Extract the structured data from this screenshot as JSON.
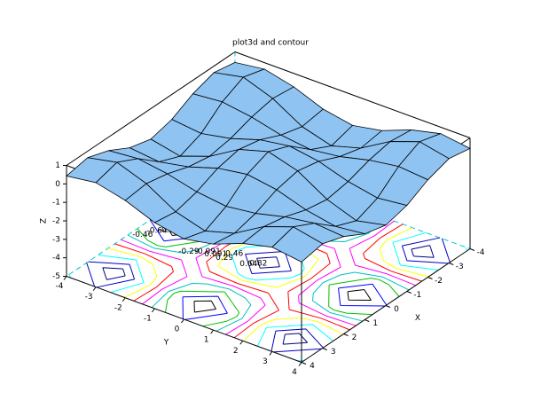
{
  "chart_data": {
    "type": "surface3d",
    "title": "plot3d and contour",
    "xlabel": "X",
    "ylabel": "Y",
    "zlabel": "Z",
    "x": [
      -4,
      -3,
      -2,
      -1,
      0,
      1,
      2,
      3,
      4
    ],
    "y": [
      -4,
      -3,
      -2,
      -1,
      0,
      1,
      2,
      3,
      4
    ],
    "z": [
      [
        0.43,
        0.65,
        0.27,
        -0.35,
        -0.65,
        -0.35,
        0.27,
        0.65,
        0.43
      ],
      [
        0.65,
        0.98,
        0.41,
        -0.53,
        -0.99,
        -0.53,
        0.41,
        0.98,
        0.65
      ],
      [
        0.27,
        0.41,
        0.17,
        -0.22,
        -0.42,
        -0.22,
        0.17,
        0.41,
        0.27
      ],
      [
        -0.35,
        -0.53,
        -0.22,
        0.29,
        0.54,
        0.29,
        -0.22,
        -0.53,
        -0.35
      ],
      [
        -0.65,
        -0.99,
        -0.42,
        0.54,
        1,
        0.54,
        -0.42,
        -0.99,
        -0.65
      ],
      [
        -0.35,
        -0.53,
        -0.22,
        0.29,
        0.54,
        0.29,
        -0.22,
        -0.53,
        -0.35
      ],
      [
        0.27,
        0.41,
        0.17,
        -0.22,
        -0.42,
        -0.22,
        0.17,
        0.41,
        0.27
      ],
      [
        0.65,
        0.98,
        0.41,
        -0.53,
        -0.99,
        -0.53,
        0.41,
        0.98,
        0.65
      ],
      [
        0.43,
        0.65,
        0.27,
        -0.35,
        -0.65,
        -0.35,
        0.27,
        0.65,
        0.43
      ]
    ],
    "surface_color": "#8ec3f2",
    "contour_levels": [
      -0.82,
      -0.64,
      -0.46,
      -0.29,
      -0.091,
      0.091,
      0.29,
      0.46,
      0.64,
      0.82
    ],
    "contour_colors": [
      "#000000",
      "#0000ff",
      "#00c000",
      "#00c0c0",
      "#ff00ff",
      "#ff0000",
      "#ffff00",
      "#00ffff",
      "#0000c0",
      "#000080"
    ],
    "xlim": [
      -4,
      4
    ],
    "ylim": [
      -4,
      4
    ],
    "zlim": [
      -5,
      1
    ],
    "xticks": [
      -4,
      -3,
      -2,
      -1,
      0,
      1,
      2,
      3,
      4
    ],
    "yticks": [
      -4,
      -3,
      -2,
      -1,
      0,
      1,
      2,
      3,
      4
    ],
    "zticks": [
      -5,
      -4,
      -3,
      -2,
      -1,
      0,
      1
    ]
  }
}
